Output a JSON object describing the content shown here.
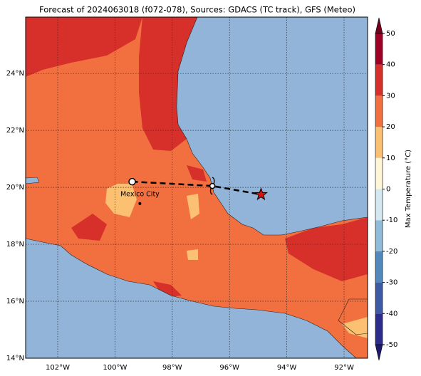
{
  "title": "Forecast of 2024063018 (f072-078), Sources: GDACS (TC track), GFS (Meteo)",
  "map": {
    "xlim": [
      -103.12,
      -91.18
    ],
    "ylim": [
      14,
      25.98
    ],
    "xticks": [
      {
        "value": -102,
        "label": "102°W"
      },
      {
        "value": -100,
        "label": "100°W"
      },
      {
        "value": -98,
        "label": "98°W"
      },
      {
        "value": -96,
        "label": "96°W"
      },
      {
        "value": -94,
        "label": "94°W"
      },
      {
        "value": -92,
        "label": "92°W"
      }
    ],
    "yticks": [
      {
        "value": 14,
        "label": "14°N"
      },
      {
        "value": 16,
        "label": "16°N"
      },
      {
        "value": 18,
        "label": "18°N"
      },
      {
        "value": 20,
        "label": "20°N"
      },
      {
        "value": 22,
        "label": "22°N"
      },
      {
        "value": 24,
        "label": "24°N"
      }
    ],
    "grid": true
  },
  "track": {
    "lon": [
      -99.4,
      -96.6,
      -94.9
    ],
    "lat": [
      20.2,
      20.05,
      19.75
    ]
  },
  "city": {
    "label": "Mexico City",
    "lon": -99.13,
    "lat": 19.43
  },
  "colorbar": {
    "label": "Max Temperature (°C)",
    "lim": [
      -50,
      50
    ],
    "ticks": [
      -50,
      -40,
      -30,
      -20,
      -10,
      0,
      10,
      20,
      30,
      40,
      50
    ],
    "colors": [
      "#2b2c8c",
      "#3c5ba4",
      "#5188bd",
      "#90bcd9",
      "#d4e8f1",
      "#fff6d8",
      "#fcc073",
      "#f26f40",
      "#d7302a",
      "#9e0026"
    ],
    "under_color": "#1b1a6e",
    "over_color": "#75001c"
  }
}
